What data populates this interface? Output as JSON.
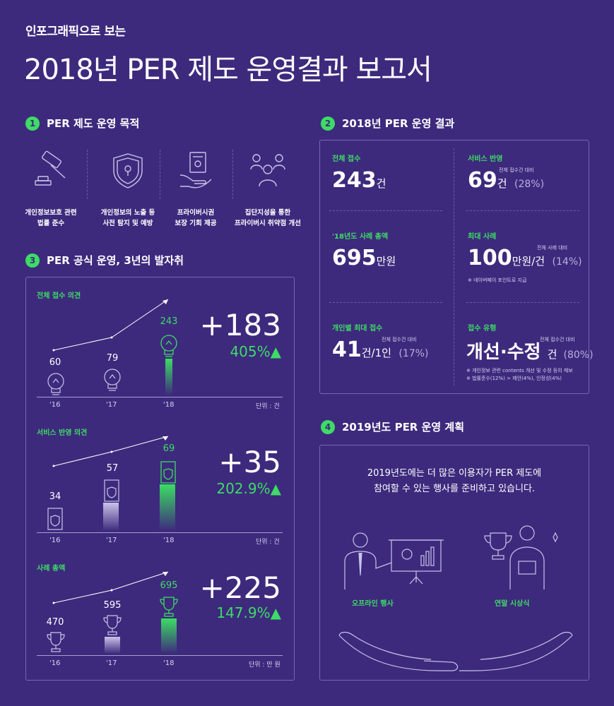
{
  "header": {
    "subtitle": "인포그래픽으로 보는",
    "title": "2018년 PER 제도 운영결과 보고서"
  },
  "section1": {
    "num": "1",
    "title": "PER 제도 운영 목적",
    "items": [
      {
        "icon": "gavel-icon",
        "line1": "개인정보보호 관련",
        "line2": "법률 준수"
      },
      {
        "icon": "shield-lock-icon",
        "line1": "개인정보의 노출 등",
        "line2": "사전 탐지 및 예방"
      },
      {
        "icon": "document-hand-icon",
        "line1": "프라이버시권",
        "line2": "보장 기회 제공"
      },
      {
        "icon": "people-group-icon",
        "line1": "집단지성을 통한",
        "line2": "프라이버시 취약점 개선"
      }
    ]
  },
  "section2": {
    "num": "2",
    "title": "2018년 PER 운영 결과",
    "cells": {
      "total": {
        "label": "전체 접수",
        "value": "243",
        "unit": "건"
      },
      "service": {
        "label": "서비스 반영",
        "note": "전체 접수건 대비",
        "value": "69",
        "unit": "건",
        "pct": "(28%)"
      },
      "reward": {
        "label": "'18년도 사례 총액",
        "value": "695",
        "unit": "만원"
      },
      "max": {
        "label": "최대 사례",
        "note": "전체 사례 대비",
        "value": "100",
        "unit": "만원/건",
        "pct": "(14%)",
        "foot": "※ 네이버페이 포인트로 지급"
      },
      "person": {
        "label": "개인별 최대 접수",
        "note": "전체 접수건 대비",
        "value": "41",
        "unit": "건/1인",
        "pct": "(17%)"
      },
      "type": {
        "label": "접수 유형",
        "note": "전체 접수건 대비",
        "value": "개선·수정",
        "unit": "건",
        "pct": "(80%)",
        "foot1": "※ 개인정보 관련 contents 개선 및 수정 등의 제보",
        "foot2": "※ 법률준수(12%) > 제안(4%), 인정성(4%)"
      }
    }
  },
  "section3": {
    "num": "3",
    "title": "PER 공식 운영, 3년의 발자취",
    "years": [
      "'16",
      "'17",
      "'18"
    ],
    "charts": [
      {
        "label": "전체 접수 의견",
        "values": [
          "60",
          "79",
          "243"
        ],
        "delta": "+183",
        "pct": "405%▲",
        "unit": "단위 : 건"
      },
      {
        "label": "서비스 반영 의견",
        "values": [
          "34",
          "57",
          "69"
        ],
        "delta": "+35",
        "pct": "202.9%▲",
        "unit": "단위 : 건"
      },
      {
        "label": "사례 총액",
        "values": [
          "470",
          "595",
          "695"
        ],
        "delta": "+225",
        "pct": "147.9%▲",
        "unit": "단위 : 만 원"
      }
    ]
  },
  "section4": {
    "num": "4",
    "title": "2019년도 PER 운영 계획",
    "line1": "2019년도에는 더 많은 이용자가 PER 제도에",
    "line2": "참여할 수 있는 행사를  준비하고 있습니다.",
    "event1": "오프라인 행사",
    "event2": "연말 시상식"
  }
}
